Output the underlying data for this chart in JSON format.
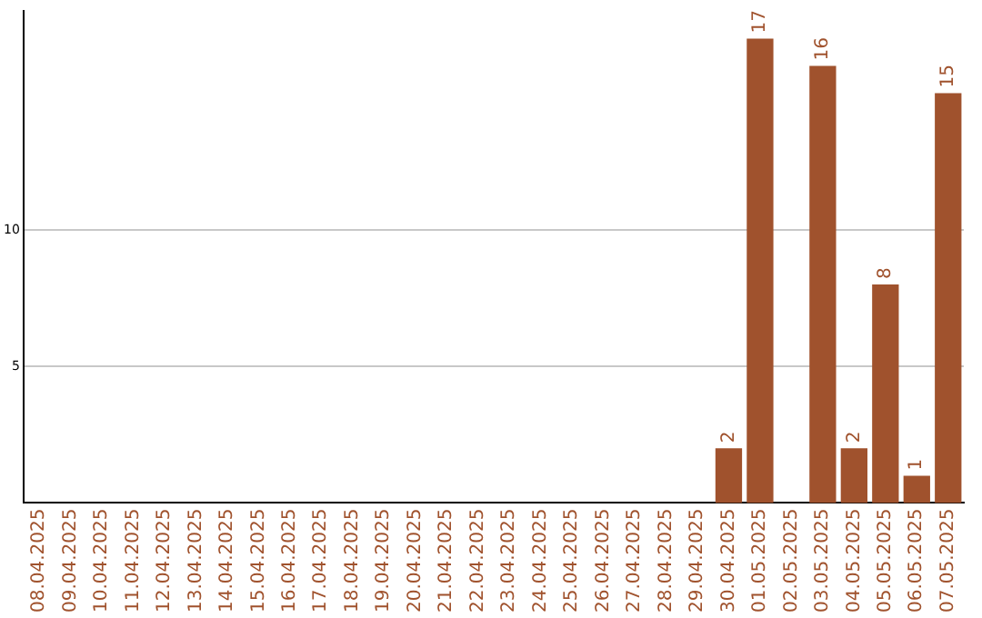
{
  "chart_data": {
    "type": "bar",
    "categories": [
      "08.04.2025",
      "09.04.2025",
      "10.04.2025",
      "11.04.2025",
      "12.04.2025",
      "13.04.2025",
      "14.04.2025",
      "15.04.2025",
      "16.04.2025",
      "17.04.2025",
      "18.04.2025",
      "19.04.2025",
      "20.04.2025",
      "21.04.2025",
      "22.04.2025",
      "23.04.2025",
      "24.04.2025",
      "25.04.2025",
      "26.04.2025",
      "27.04.2025",
      "28.04.2025",
      "29.04.2025",
      "30.04.2025",
      "01.05.2025",
      "02.05.2025",
      "03.05.2025",
      "04.05.2025",
      "05.05.2025",
      "06.05.2025",
      "07.05.2025"
    ],
    "values": [
      0,
      0,
      0,
      0,
      0,
      0,
      0,
      0,
      0,
      0,
      0,
      0,
      0,
      0,
      0,
      0,
      0,
      0,
      0,
      0,
      0,
      0,
      2,
      17,
      0,
      16,
      2,
      8,
      1,
      15
    ],
    "value_labels": [
      null,
      null,
      null,
      null,
      null,
      null,
      null,
      null,
      null,
      null,
      null,
      null,
      null,
      null,
      null,
      null,
      null,
      null,
      null,
      null,
      null,
      null,
      "2",
      "17",
      null,
      "16",
      "2",
      "8",
      "1",
      "15"
    ],
    "color": "#a0522d",
    "ylim": [
      0,
      18
    ],
    "yticks": [
      5,
      10
    ],
    "grid": "y",
    "legend": false
  }
}
